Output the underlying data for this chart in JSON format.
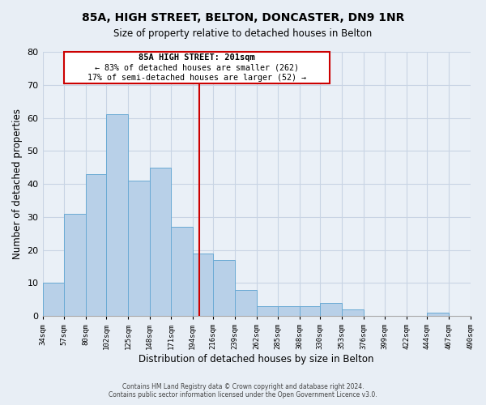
{
  "title": "85A, HIGH STREET, BELTON, DONCASTER, DN9 1NR",
  "subtitle": "Size of property relative to detached houses in Belton",
  "xlabel": "Distribution of detached houses by size in Belton",
  "ylabel": "Number of detached properties",
  "footer_line1": "Contains HM Land Registry data © Crown copyright and database right 2024.",
  "footer_line2": "Contains public sector information licensed under the Open Government Licence v3.0.",
  "bar_edges": [
    34,
    57,
    80,
    102,
    125,
    148,
    171,
    194,
    216,
    239,
    262,
    285,
    308,
    330,
    353,
    376,
    399,
    422,
    444,
    467,
    490
  ],
  "bar_heights": [
    10,
    31,
    43,
    61,
    41,
    45,
    27,
    19,
    17,
    8,
    3,
    3,
    3,
    4,
    2,
    0,
    0,
    0,
    1,
    0
  ],
  "bar_color": "#b8d0e8",
  "bar_edge_color": "#6aaad4",
  "vline_x": 201,
  "vline_color": "#cc0000",
  "annotation_text_line1": "85A HIGH STREET: 201sqm",
  "annotation_text_line2": "← 83% of detached houses are smaller (262)",
  "annotation_text_line3": "17% of semi-detached houses are larger (52) →",
  "annotation_box_color": "#cc0000",
  "annotation_fill": "#ffffff",
  "xlim": [
    34,
    490
  ],
  "ylim": [
    0,
    80
  ],
  "yticks": [
    0,
    10,
    20,
    30,
    40,
    50,
    60,
    70,
    80
  ],
  "bg_color": "#e8eef5",
  "plot_bg_color": "#eaf0f7",
  "grid_color": "#c8d4e4",
  "tick_labels": [
    "34sqm",
    "57sqm",
    "80sqm",
    "102sqm",
    "125sqm",
    "148sqm",
    "171sqm",
    "194sqm",
    "216sqm",
    "239sqm",
    "262sqm",
    "285sqm",
    "308sqm",
    "330sqm",
    "353sqm",
    "376sqm",
    "399sqm",
    "422sqm",
    "444sqm",
    "467sqm",
    "490sqm"
  ]
}
